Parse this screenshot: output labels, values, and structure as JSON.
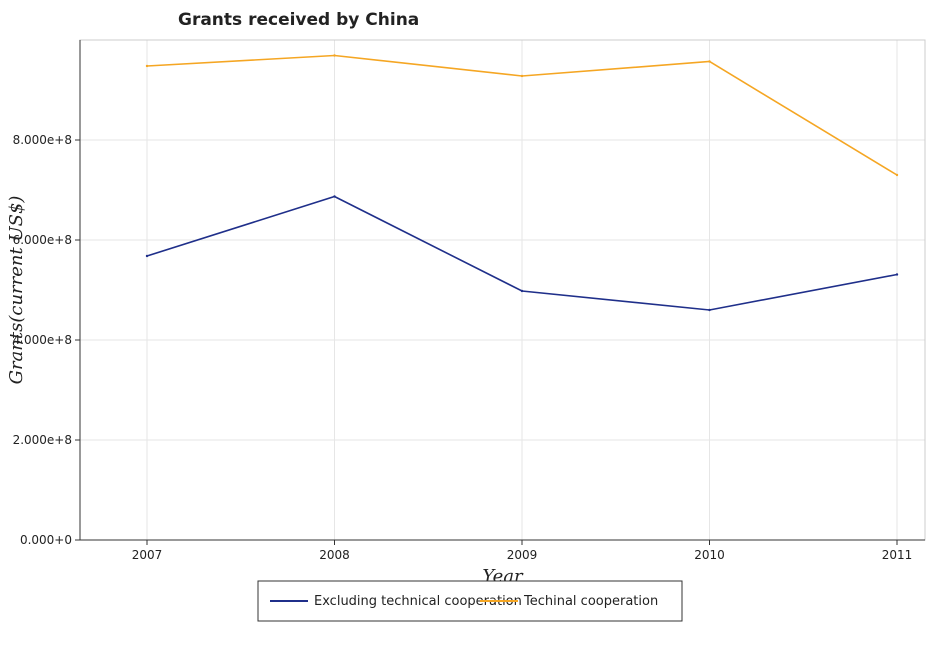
{
  "chart_data": {
    "type": "line",
    "title": "Grants received by China",
    "xlabel": "Year",
    "ylabel": "Grants(current US$)",
    "categories": [
      "2007",
      "2008",
      "2009",
      "2010",
      "2011"
    ],
    "ylim": [
      0,
      1000000000
    ],
    "yticks": [
      0,
      200000000,
      400000000,
      600000000,
      800000000
    ],
    "ytick_labels": [
      "0.000+0",
      "2.000e+8",
      "4.000e+8",
      "6.000e+8",
      "8.000e+8"
    ],
    "grid": true,
    "legend_position": "bottom-center",
    "series": [
      {
        "name": "Excluding technical cooperation",
        "color": "#1f2f8a",
        "values": [
          568000000,
          687000000,
          498000000,
          460000000,
          531000000
        ]
      },
      {
        "name": "Techinal cooperation",
        "color": "#f5a623",
        "values": [
          948000000,
          969000000,
          928000000,
          957000000,
          730000000
        ]
      }
    ]
  }
}
